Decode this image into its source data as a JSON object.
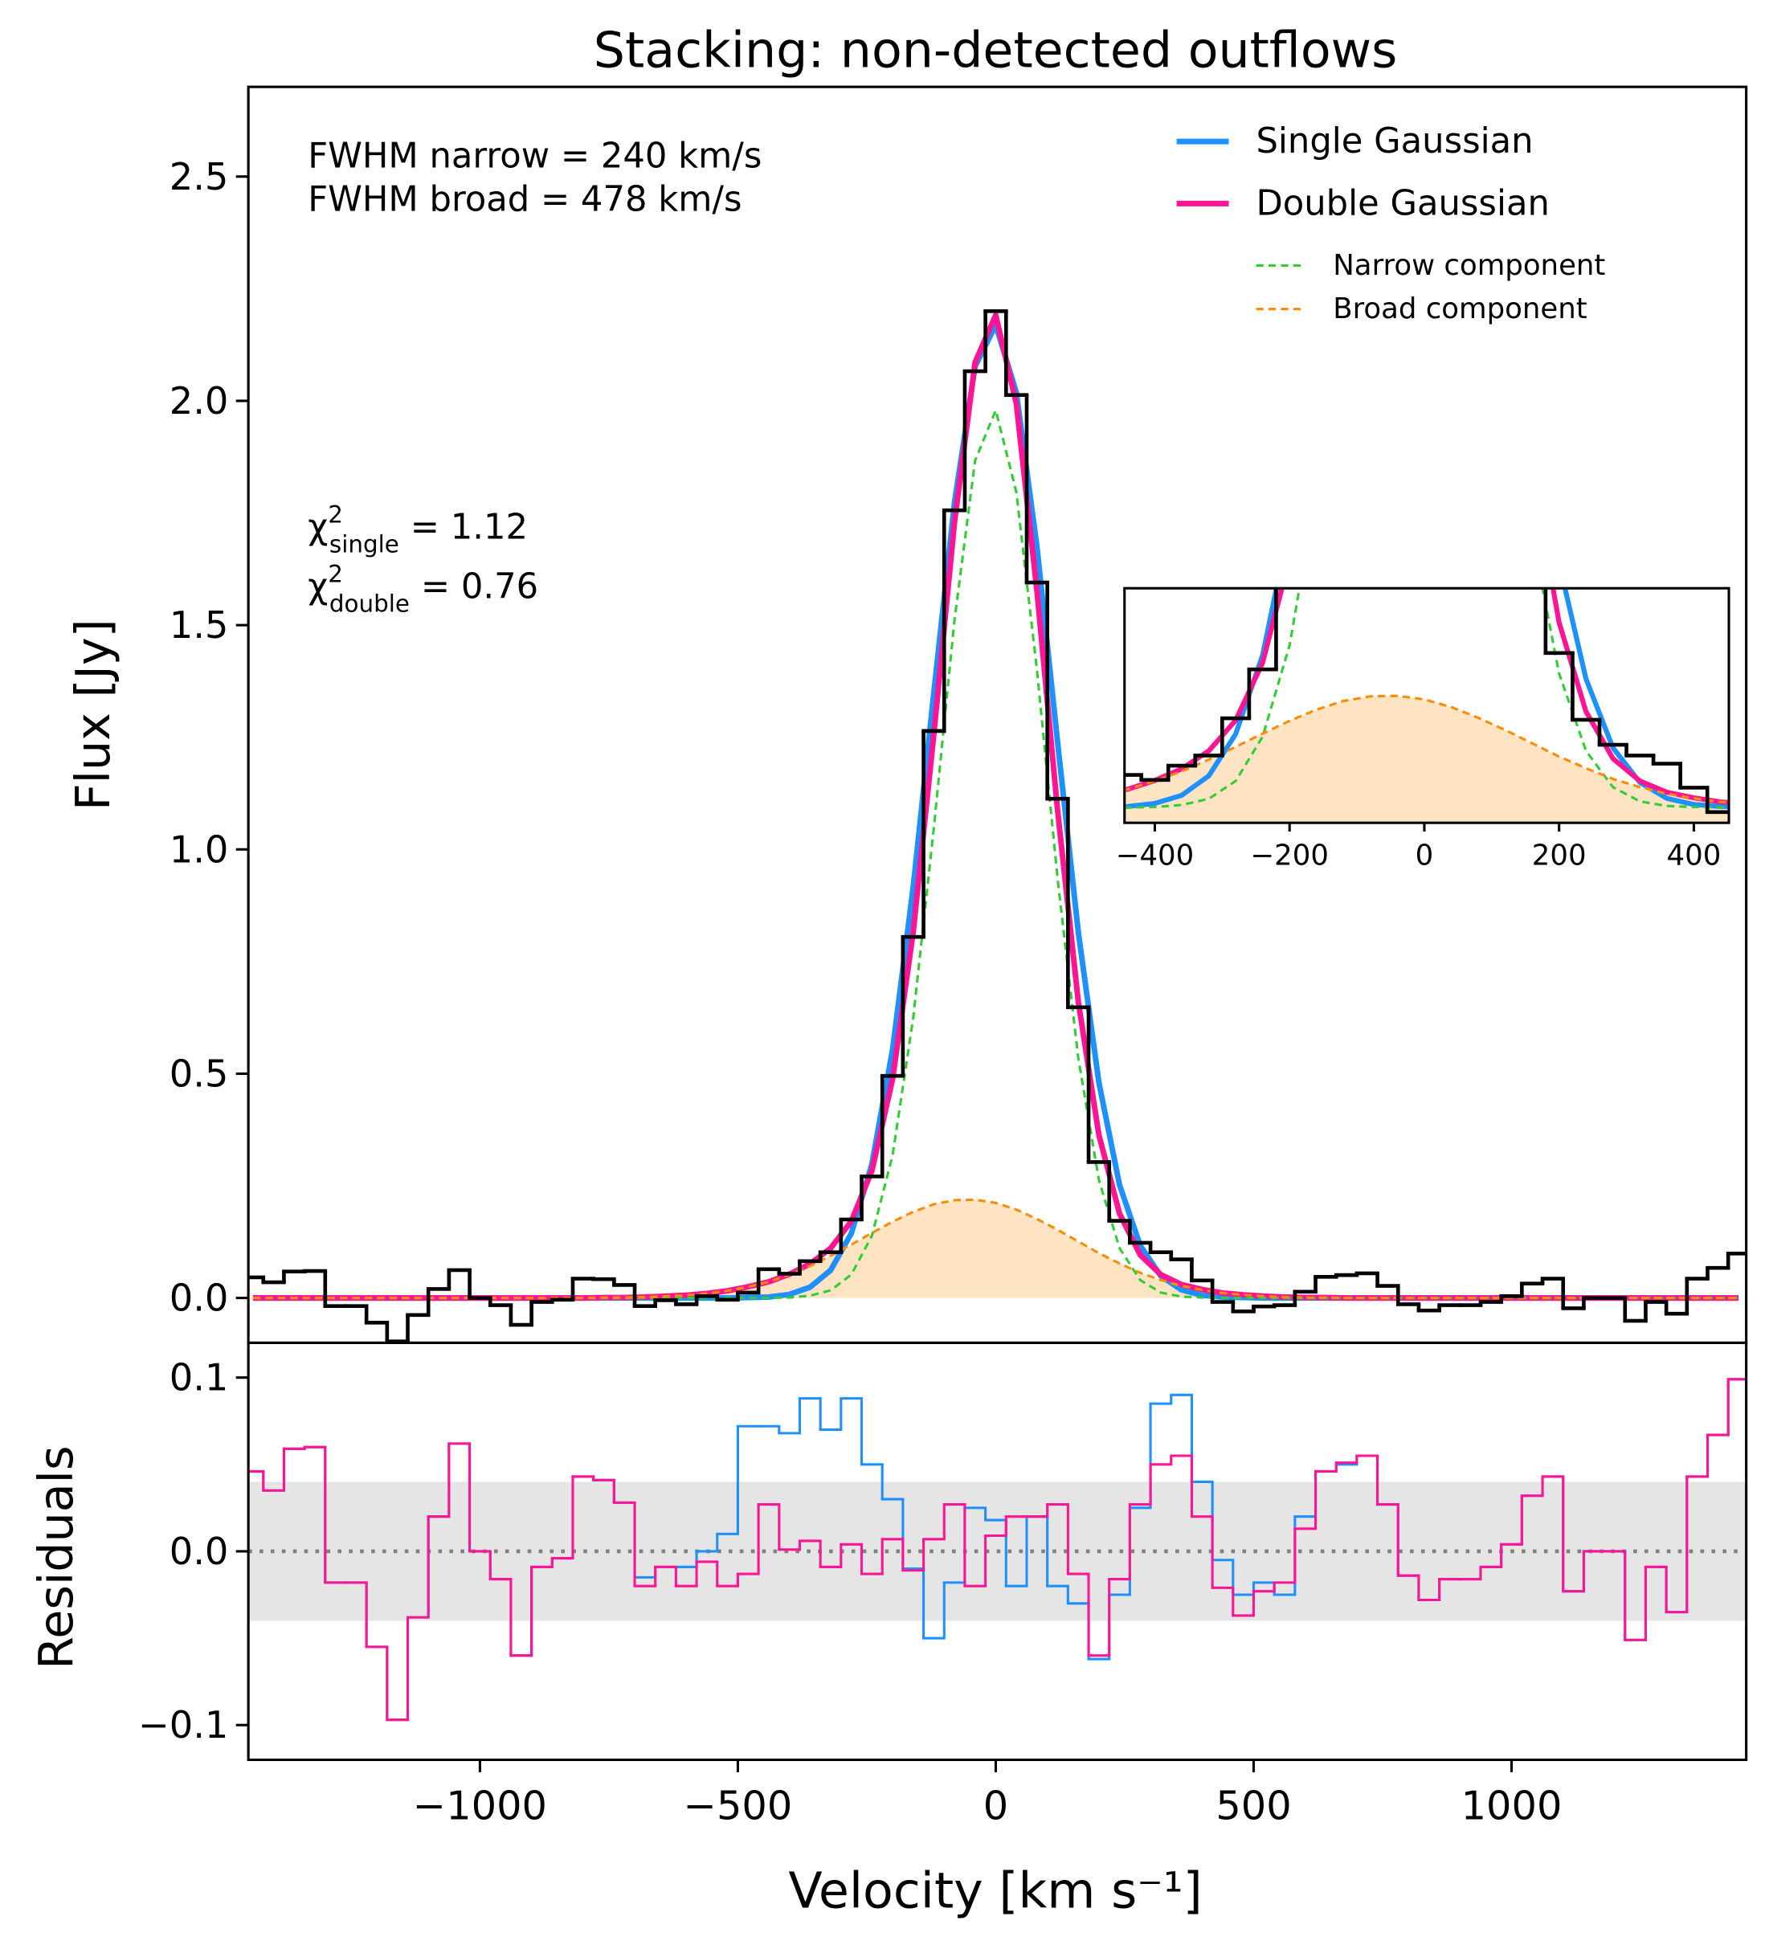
{
  "chart_data": [
    {
      "type": "step",
      "title": "Stacking: non-detected outflows",
      "ylabel": "Flux [Jy]",
      "x": [
        -1440,
        -1400,
        -1360,
        -1320,
        -1280,
        -1240,
        -1200,
        -1160,
        -1120,
        -1080,
        -1040,
        -1000,
        -960,
        -920,
        -880,
        -840,
        -800,
        -760,
        -720,
        -680,
        -640,
        -600,
        -560,
        -520,
        -480,
        -440,
        -400,
        -360,
        -320,
        -280,
        -240,
        -200,
        -160,
        -120,
        -80,
        -40,
        0,
        40,
        80,
        120,
        160,
        200,
        240,
        280,
        320,
        360,
        400,
        440,
        480,
        520,
        560,
        600,
        640,
        680,
        720,
        760,
        800,
        840,
        880,
        920,
        960,
        1000,
        1040,
        1080,
        1120,
        1160,
        1200,
        1240,
        1280,
        1320,
        1360,
        1400,
        1440
      ],
      "xlim": [
        -1449,
        1455
      ],
      "ylim": [
        -0.1,
        2.7
      ],
      "yticks": [
        {
          "value": 0,
          "label": "0.0"
        },
        0.5,
        {
          "value": 1,
          "label": "1.0"
        },
        1.5,
        {
          "value": 2,
          "label": "2.0"
        },
        2.5
      ],
      "legend": "upper right",
      "annotations": [
        "FWHM narrow = 240 km/s",
        "FWHM broad = 478 km/s"
      ],
      "chi2": [
        {
          "symbol": "χ",
          "sup": "2",
          "sub": "single",
          "text": "= 1.12"
        },
        {
          "symbol": "χ",
          "sup": "2",
          "sub": "double",
          "text": "= 0.76"
        }
      ],
      "series": [
        {
          "color": "#000000",
          "style": "step",
          "values": [
            0.046,
            0.035,
            0.059,
            0.06,
            -0.018,
            -0.018,
            -0.055,
            -0.097,
            -0.038,
            0.02,
            0.062,
            0,
            -0.016,
            -0.06,
            -0.009,
            -0.004,
            0.043,
            0.042,
            0.029,
            -0.018,
            -0.005,
            -0.014,
            0.004,
            -0.004,
            0.012,
            0.064,
            0.054,
            0.082,
            0.102,
            0.175,
            0.271,
            0.495,
            0.805,
            1.264,
            1.756,
            2.066,
            2.2,
            2.013,
            1.595,
            1.113,
            0.648,
            0.303,
            0.172,
            0.123,
            0.102,
            0.086,
            0.039,
            -0.009,
            -0.03,
            -0.019,
            -0.016,
            0.014,
            0.047,
            0.051,
            0.055,
            0.027,
            -0.014,
            -0.028,
            -0.016,
            -0.016,
            -0.009,
            0.004,
            0.032,
            0.043,
            -0.023,
            0,
            0,
            -0.051,
            -0.009,
            -0.035,
            0.043,
            0.067,
            0.099
          ]
        },
        {
          "name": "Single Gaussian",
          "color": "#1e90ff",
          "style": "line",
          "values": [
            0,
            0,
            0,
            0,
            0,
            0,
            0,
            0,
            0,
            0,
            0,
            0,
            0,
            0,
            0,
            0,
            0,
            0,
            0,
            0,
            0,
            0,
            0,
            0,
            0.001,
            0.002,
            0.008,
            0.024,
            0.062,
            0.144,
            0.299,
            0.554,
            0.916,
            1.35,
            1.773,
            2.077,
            2.169,
            2.018,
            1.674,
            1.238,
            0.816,
            0.48,
            0.252,
            0.117,
            0.049,
            0.018,
            0.006,
            0.002,
            0.001,
            0,
            0,
            0,
            0,
            0,
            0,
            0,
            0,
            0,
            0,
            0,
            0,
            0,
            0,
            0,
            0,
            0,
            0,
            0,
            0,
            0,
            0,
            0,
            0
          ]
        },
        {
          "name": "Double Gaussian",
          "color": "#ff1493",
          "style": "line",
          "values": [
            0,
            0,
            0,
            0,
            0,
            0,
            0,
            0,
            0,
            0,
            0,
            0,
            0,
            0,
            0,
            0,
            0,
            0.001,
            0.001,
            0.002,
            0.004,
            0.006,
            0.01,
            0.016,
            0.025,
            0.036,
            0.053,
            0.076,
            0.111,
            0.171,
            0.284,
            0.488,
            0.816,
            1.257,
            1.729,
            2.086,
            2.191,
            1.993,
            1.575,
            1.086,
            0.661,
            0.363,
            0.188,
            0.096,
            0.052,
            0.03,
            0.019,
            0.011,
            0.007,
            0.004,
            0.002,
            0.001,
            0.001,
            0,
            0,
            0,
            0,
            0,
            0,
            0,
            0,
            0,
            0,
            0,
            0,
            0,
            0,
            0,
            0,
            0,
            0,
            0,
            0
          ]
        },
        {
          "name": "Narrow component",
          "color": "#32cd32",
          "style": "dashed",
          "values": [
            0,
            0,
            0,
            0,
            0,
            0,
            0,
            0,
            0,
            0,
            0,
            0,
            0,
            0,
            0,
            0,
            0,
            0,
            0,
            0,
            0,
            0,
            0,
            0,
            0,
            0,
            0.001,
            0.005,
            0.017,
            0.052,
            0.139,
            0.318,
            0.624,
            1.048,
            1.511,
            1.867,
            1.979,
            1.796,
            1.399,
            0.934,
            0.535,
            0.263,
            0.111,
            0.04,
            0.012,
            0.003,
            0.001,
            0,
            0,
            0,
            0,
            0,
            0,
            0,
            0,
            0,
            0,
            0,
            0,
            0,
            0,
            0,
            0,
            0,
            0,
            0,
            0,
            0,
            0,
            0,
            0,
            0,
            0
          ]
        },
        {
          "name": "Broad component",
          "color": "#ff8c00",
          "style": "dashed",
          "fill": "#ffe4c4",
          "values": [
            0,
            0,
            0,
            0,
            0,
            0,
            0,
            0,
            0,
            0,
            0,
            0,
            0,
            0,
            0,
            0,
            0,
            0.001,
            0.001,
            0.002,
            0.004,
            0.006,
            0.01,
            0.016,
            0.025,
            0.036,
            0.052,
            0.071,
            0.094,
            0.119,
            0.145,
            0.17,
            0.192,
            0.209,
            0.218,
            0.219,
            0.212,
            0.197,
            0.176,
            0.152,
            0.126,
            0.1,
            0.077,
            0.056,
            0.04,
            0.027,
            0.018,
            0.011,
            0.007,
            0.004,
            0.002,
            0.001,
            0.001,
            0,
            0,
            0,
            0,
            0,
            0,
            0,
            0,
            0,
            0,
            0,
            0,
            0,
            0,
            0,
            0,
            0,
            0,
            0,
            0
          ]
        }
      ]
    },
    {
      "type": "residuals",
      "ylabel": "Residuals",
      "xlabel": "Velocity [km s⁻¹]",
      "xlim": [
        -1449,
        1455
      ],
      "ylim": [
        -0.12,
        0.12
      ],
      "yticks": [
        {
          "value": -0.1,
          "label": "−0.1"
        },
        {
          "value": 0,
          "label": "0.0"
        },
        0.1
      ],
      "xticks": [
        {
          "value": -1000,
          "label": "−1000"
        },
        {
          "value": -500,
          "label": "−500"
        },
        0,
        500,
        1000
      ],
      "band": [
        -0.04,
        0.04
      ],
      "band_color": "#e5e5e5",
      "series": [
        {
          "color": "#1e90ff",
          "values": [
            0.046,
            0.035,
            0.059,
            0.06,
            -0.018,
            -0.018,
            -0.055,
            -0.097,
            -0.038,
            0.02,
            0.062,
            0,
            -0.016,
            -0.06,
            -0.009,
            -0.004,
            0.043,
            0.041,
            0.028,
            -0.015,
            -0.009,
            -0.009,
            0,
            0.01,
            0.072,
            0.072,
            0.068,
            0.088,
            0.07,
            0.088,
            0.05,
            0.03,
            -0.01,
            -0.05,
            -0.018,
            0.025,
            0.018,
            -0.02,
            0.02,
            -0.02,
            -0.03,
            -0.062,
            -0.025,
            0.025,
            0.085,
            0.09,
            0.04,
            -0.005,
            -0.025,
            -0.018,
            -0.025,
            0.02,
            0.046,
            0.05,
            0.055,
            0.027,
            -0.014,
            -0.028,
            -0.016,
            -0.016,
            -0.009,
            0.004,
            0.032,
            0.043,
            -0.023,
            0,
            0,
            -0.051,
            -0.009,
            -0.035,
            0.043,
            0.067,
            0.099
          ]
        },
        {
          "color": "#ff1493",
          "values": [
            0.046,
            0.035,
            0.059,
            0.06,
            -0.018,
            -0.018,
            -0.055,
            -0.097,
            -0.038,
            0.02,
            0.062,
            0,
            -0.016,
            -0.06,
            -0.009,
            -0.004,
            0.043,
            0.041,
            0.028,
            -0.02,
            -0.009,
            -0.02,
            -0.006,
            -0.02,
            -0.013,
            0.027,
            0.001,
            0.006,
            -0.009,
            0.004,
            -0.013,
            0.007,
            -0.011,
            0.007,
            0.027,
            -0.02,
            0.009,
            0.02,
            0.02,
            0.027,
            -0.013,
            -0.06,
            -0.016,
            0.027,
            0.05,
            0.055,
            0.02,
            -0.021,
            -0.037,
            -0.023,
            -0.018,
            0.013,
            0.046,
            0.051,
            0.055,
            0.027,
            -0.014,
            -0.028,
            -0.016,
            -0.016,
            -0.009,
            0.004,
            0.032,
            0.043,
            -0.023,
            0,
            0,
            -0.051,
            -0.009,
            -0.035,
            0.043,
            0.067,
            0.099
          ]
        }
      ]
    },
    {
      "type": "inset",
      "xlim": [
        -445,
        452
      ],
      "ylim": [
        -0.03,
        0.43
      ],
      "xticks": [
        {
          "value": -400,
          "label": "−400"
        },
        {
          "value": -200,
          "label": "−200"
        },
        0,
        200,
        400
      ]
    }
  ]
}
